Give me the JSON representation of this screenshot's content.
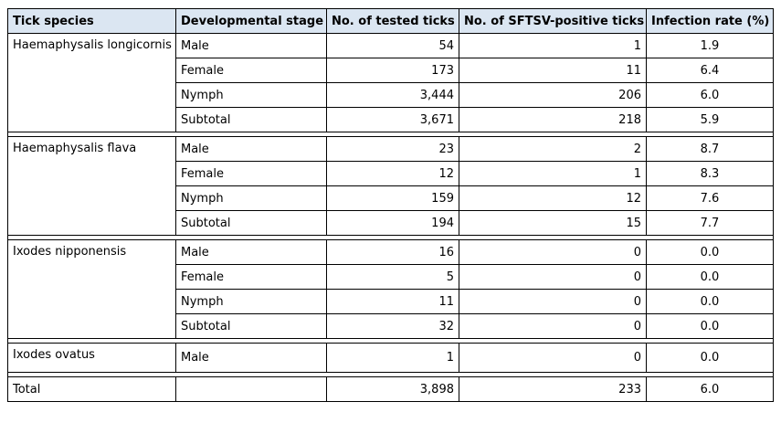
{
  "table": {
    "header": [
      "Tick species",
      "Developmental stage",
      "No. of tested ticks",
      "No. of SFTSV-positive ticks",
      "Infection rate (%)"
    ],
    "groups": [
      {
        "species": "Haemaphysalis longicornis",
        "rows": [
          [
            "Male",
            "54",
            "1",
            "1.9"
          ],
          [
            "Female",
            "173",
            "11",
            "6.4"
          ],
          [
            "Nymph",
            "3,444",
            "206",
            "6.0"
          ],
          [
            "Subtotal",
            "3,671",
            "218",
            "5.9"
          ]
        ]
      },
      {
        "species": "Haemaphysalis flava",
        "rows": [
          [
            "Male",
            "23",
            "2",
            "8.7"
          ],
          [
            "Female",
            "12",
            "1",
            "8.3"
          ],
          [
            "Nymph",
            "159",
            "12",
            "7.6"
          ],
          [
            "Subtotal",
            "194",
            "15",
            "7.7"
          ]
        ]
      },
      {
        "species": "Ixodes nipponensis",
        "rows": [
          [
            "Male",
            "16",
            "0",
            "0.0"
          ],
          [
            "Female",
            "5",
            "0",
            "0.0"
          ],
          [
            "Nymph",
            "11",
            "0",
            "0.0"
          ],
          [
            "Subtotal",
            "32",
            "0",
            "0.0"
          ]
        ]
      },
      {
        "species": "Ixodes ovatus",
        "rows": [
          [
            "Male",
            "1",
            "0",
            "0.0"
          ]
        ]
      }
    ],
    "total": {
      "label": "Total",
      "values": [
        "3,898",
        "233",
        "6.0"
      ]
    }
  }
}
